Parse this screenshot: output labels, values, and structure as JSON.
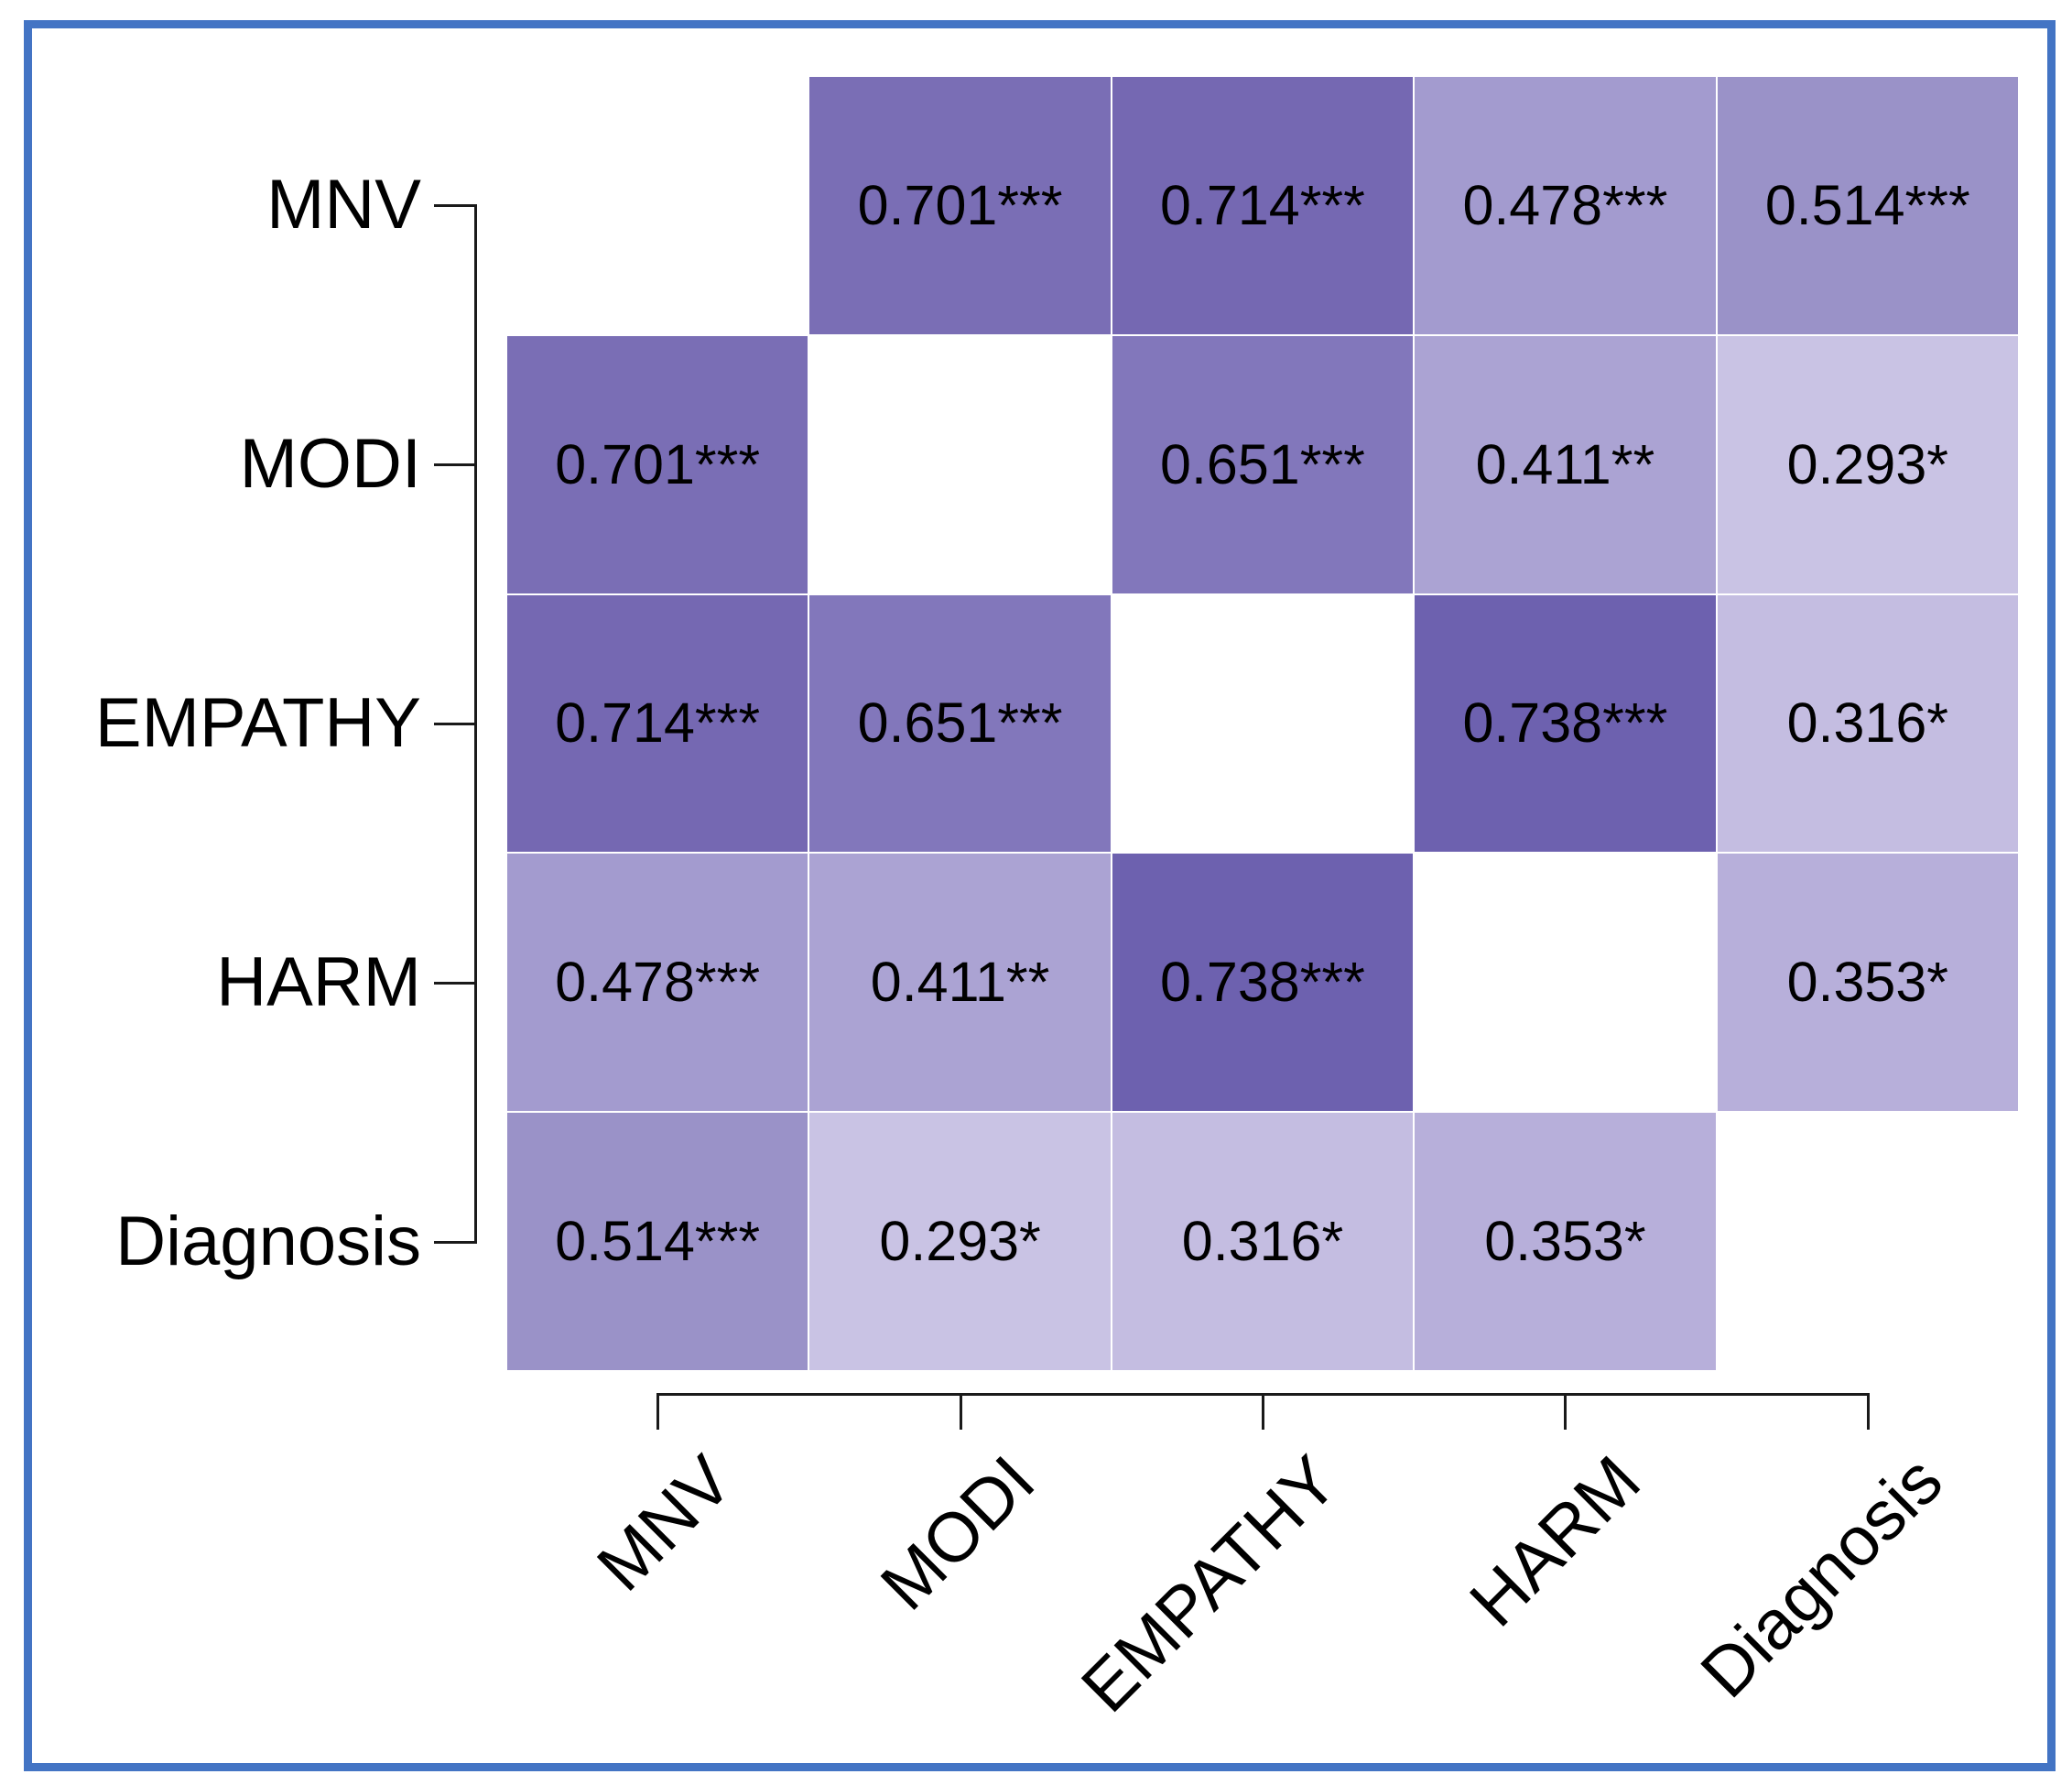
{
  "figure": {
    "background_color": "#ffffff",
    "border_color": "#4374c4",
    "axis_color": "#1a1a1a",
    "text_color": "#000000"
  },
  "chart_data": {
    "type": "heatmap",
    "title": "",
    "xlabel": "",
    "ylabel": "",
    "variables": [
      "MNV",
      "MODI",
      "EMPATHY",
      "HARM",
      "Diagnosis"
    ],
    "row_labels": [
      "MNV",
      "MODI",
      "EMPATHY",
      "HARM",
      "Diagnosis"
    ],
    "col_labels": [
      "MNV",
      "MODI",
      "EMPATHY",
      "HARM",
      "Diagnosis"
    ],
    "cells": [
      [
        null,
        "0.701***",
        "0.714***",
        "0.478***",
        "0.514***"
      ],
      [
        "0.701***",
        null,
        "0.651***",
        "0.411**",
        "0.293*"
      ],
      [
        "0.714***",
        "0.651***",
        null,
        "0.738***",
        "0.316*"
      ],
      [
        "0.478***",
        "0.411**",
        "0.738***",
        null,
        "0.353*"
      ],
      [
        "0.514***",
        "0.293*",
        "0.316*",
        "0.353*",
        null
      ]
    ],
    "values": [
      [
        null,
        0.701,
        0.714,
        0.478,
        0.514
      ],
      [
        0.701,
        null,
        0.651,
        0.411,
        0.293
      ],
      [
        0.714,
        0.651,
        null,
        0.738,
        0.316
      ],
      [
        0.478,
        0.411,
        0.738,
        null,
        0.353
      ],
      [
        0.514,
        0.293,
        0.316,
        0.353,
        null
      ]
    ],
    "value_colors": {
      "0.293": "#c9c3e4",
      "0.316": "#c4bde1",
      "0.353": "#b7afda",
      "0.411": "#aba3d3",
      "0.478": "#a39bcf",
      "0.514": "#9a92c8",
      "0.651": "#8277bb",
      "0.701": "#7a6eb5",
      "0.714": "#7568b2",
      "0.738": "#6d61af"
    },
    "diagonal_color": "#ffffff",
    "layout_hints": {
      "legend": "none",
      "grid": "off",
      "x_tick_rotation": 45,
      "y_axis_side": "left",
      "x_axis_side": "bottom"
    }
  }
}
